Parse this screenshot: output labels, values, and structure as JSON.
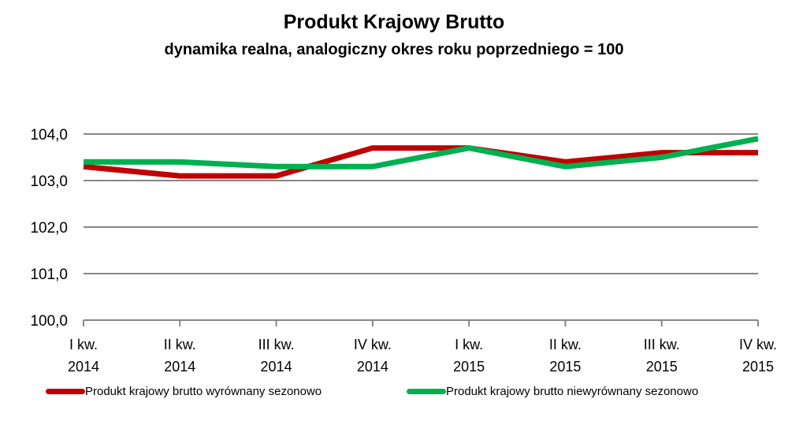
{
  "chart_data": {
    "type": "line",
    "title": "Produkt Krajowy Brutto",
    "subtitle": "dynamika realna, analogiczny okres roku poprzedniego = 100",
    "xlabel": "",
    "ylabel": "",
    "categories": [
      [
        "I kw.",
        "2014"
      ],
      [
        "II kw.",
        "2014"
      ],
      [
        "III kw.",
        "2014"
      ],
      [
        "IV kw.",
        "2014"
      ],
      [
        "I kw.",
        "2015"
      ],
      [
        "II kw.",
        "2015"
      ],
      [
        "III kw.",
        "2015"
      ],
      [
        "IV kw.",
        "2015"
      ]
    ],
    "ylim": [
      100,
      104
    ],
    "yticks": [
      "100,0",
      "101,0",
      "102,0",
      "103,0",
      "104,0"
    ],
    "grid": true,
    "legend_position": "bottom",
    "series": [
      {
        "name": "Produkt krajowy brutto wyrównany sezonowo",
        "color": "#c00000",
        "values": [
          103.3,
          103.1,
          103.1,
          103.7,
          103.7,
          103.4,
          103.6,
          103.6
        ]
      },
      {
        "name": "Produkt krajowy brutto niewyrównany sezonowo",
        "color": "#00b050",
        "values": [
          103.4,
          103.4,
          103.3,
          103.3,
          103.7,
          103.3,
          103.5,
          103.9
        ]
      }
    ]
  }
}
